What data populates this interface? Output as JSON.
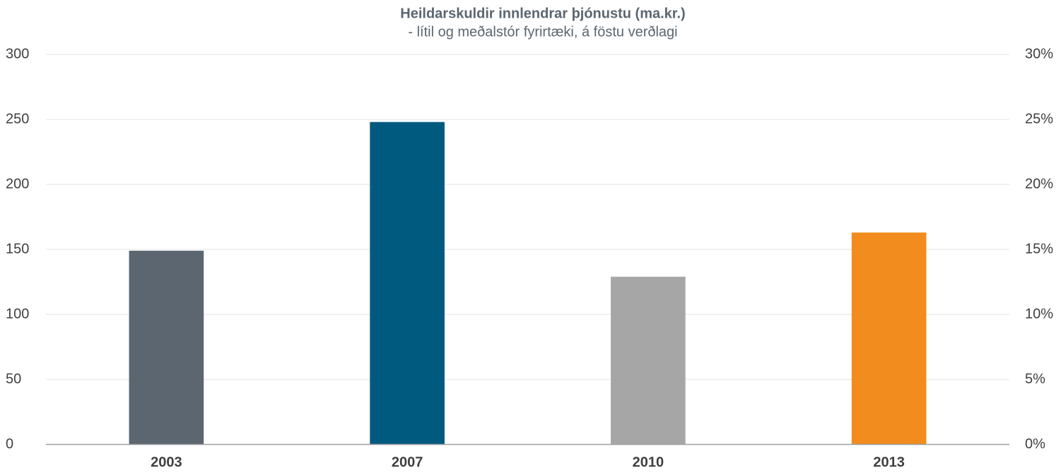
{
  "chart_data": {
    "type": "bar",
    "title": "Heildarskuldir innlendrar þjónustu (ma.kr.)",
    "subtitle": "- lítil og meðalstór fyrirtæki, á föstu verðlagi",
    "categories": [
      "2003",
      "2007",
      "2010",
      "2013"
    ],
    "values": [
      149,
      248,
      129,
      163
    ],
    "colors": [
      "#5b6670",
      "#005a80",
      "#a6a6a6",
      "#f28c1e"
    ],
    "ylim": [
      0,
      300
    ],
    "yticks": [
      0,
      50,
      100,
      150,
      200,
      250,
      300
    ],
    "y2lim": [
      0,
      30
    ],
    "y2ticks": [
      {
        "value": 0,
        "label": "0%"
      },
      {
        "value": 5,
        "label": "5%"
      },
      {
        "value": 10,
        "label": "10%"
      },
      {
        "value": 15,
        "label": "15%"
      },
      {
        "value": 20,
        "label": "20%"
      },
      {
        "value": 25,
        "label": "25%"
      },
      {
        "value": 30,
        "label": "30%"
      }
    ],
    "grid": true
  }
}
